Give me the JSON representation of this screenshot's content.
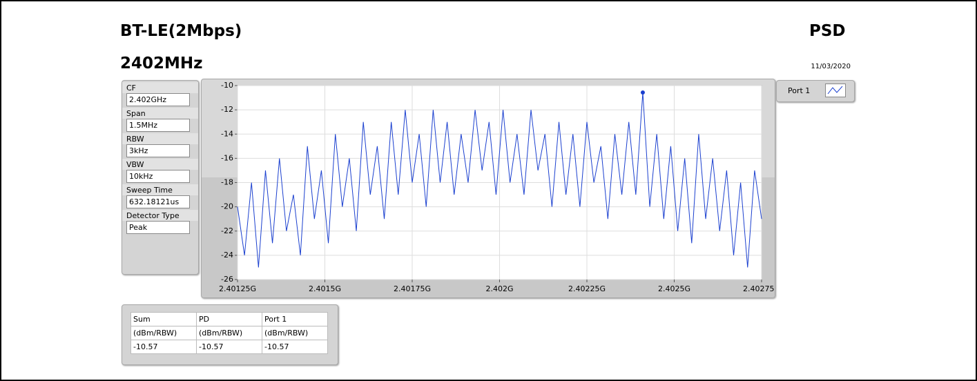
{
  "header": {
    "title": "BT-LE(2Mbps)",
    "subtitle": "2402MHz",
    "mode": "PSD",
    "date": "11/03/2020"
  },
  "settings": [
    {
      "label": "CF",
      "value": "2.402GHz"
    },
    {
      "label": "Span",
      "value": "1.5MHz"
    },
    {
      "label": "RBW",
      "value": "3kHz"
    },
    {
      "label": "VBW",
      "value": "10kHz"
    },
    {
      "label": "Sweep Time",
      "value": "632.18121us"
    },
    {
      "label": "Detector Type",
      "value": "Peak"
    }
  ],
  "chart_data": {
    "type": "line",
    "x": [
      2.40125,
      2.40127,
      2.40129,
      2.40131,
      2.40133,
      2.40135,
      2.40137,
      2.40139,
      2.40141,
      2.40143,
      2.40145,
      2.40147,
      2.40149,
      2.40151,
      2.40153,
      2.40155,
      2.40157,
      2.40159,
      2.40161,
      2.40163,
      2.40165,
      2.40167,
      2.40169,
      2.40171,
      2.40173,
      2.40175,
      2.40177,
      2.40179,
      2.40181,
      2.40183,
      2.40185,
      2.40187,
      2.40189,
      2.40191,
      2.40193,
      2.40195,
      2.40197,
      2.40199,
      2.40201,
      2.40203,
      2.40205,
      2.40207,
      2.40209,
      2.40211,
      2.40213,
      2.40215,
      2.40217,
      2.40219,
      2.40221,
      2.40223,
      2.40225,
      2.40227,
      2.40229,
      2.40231,
      2.40233,
      2.40235,
      2.40237,
      2.40239,
      2.40241,
      2.40243,
      2.40245,
      2.40247,
      2.40249,
      2.40251,
      2.40253,
      2.40255,
      2.40257,
      2.40259,
      2.40261,
      2.40263,
      2.40265,
      2.40267,
      2.40269,
      2.40271,
      2.40273,
      2.40275
    ],
    "series": [
      {
        "name": "Port 1",
        "color": "#1a3fcf",
        "values": [
          -20,
          -24,
          -18,
          -25,
          -17,
          -23,
          -16,
          -22,
          -19,
          -24,
          -15,
          -21,
          -17,
          -23,
          -14,
          -20,
          -16,
          -22,
          -13,
          -19,
          -15,
          -21,
          -13,
          -19,
          -12,
          -18,
          -14,
          -20,
          -12,
          -18,
          -13,
          -19,
          -14,
          -18,
          -12,
          -17,
          -13,
          -19,
          -12,
          -18,
          -14,
          -19,
          -12,
          -17,
          -14,
          -20,
          -13,
          -19,
          -14,
          -20,
          -13,
          -18,
          -15,
          -21,
          -14,
          -19,
          -13,
          -19,
          -10.57,
          -20,
          -14,
          -21,
          -15,
          -22,
          -16,
          -23,
          -14,
          -21,
          -16,
          -22,
          -17,
          -24,
          -18,
          -25,
          -17,
          -21
        ]
      }
    ],
    "xlim": [
      2.40125,
      2.40275
    ],
    "xticks": [
      {
        "value": 2.40125,
        "label": "2.40125G"
      },
      {
        "value": 2.4015,
        "label": "2.4015G"
      },
      {
        "value": 2.40175,
        "label": "2.40175G"
      },
      {
        "value": 2.402,
        "label": "2.402G"
      },
      {
        "value": 2.40225,
        "label": "2.40225G"
      },
      {
        "value": 2.4025,
        "label": "2.4025G"
      },
      {
        "value": 2.40275,
        "label": "2.40275G"
      }
    ],
    "ylim": [
      -26,
      -10
    ],
    "yticks": [
      -26,
      -24,
      -22,
      -20,
      -18,
      -16,
      -14,
      -12,
      -10
    ],
    "grid": true
  },
  "table": {
    "rows": [
      [
        "Sum",
        "PD",
        "Port 1"
      ],
      [
        "(dBm/RBW)",
        "(dBm/RBW)",
        "(dBm/RBW)"
      ],
      [
        "-10.57",
        "-10.57",
        "-10.57"
      ]
    ]
  }
}
